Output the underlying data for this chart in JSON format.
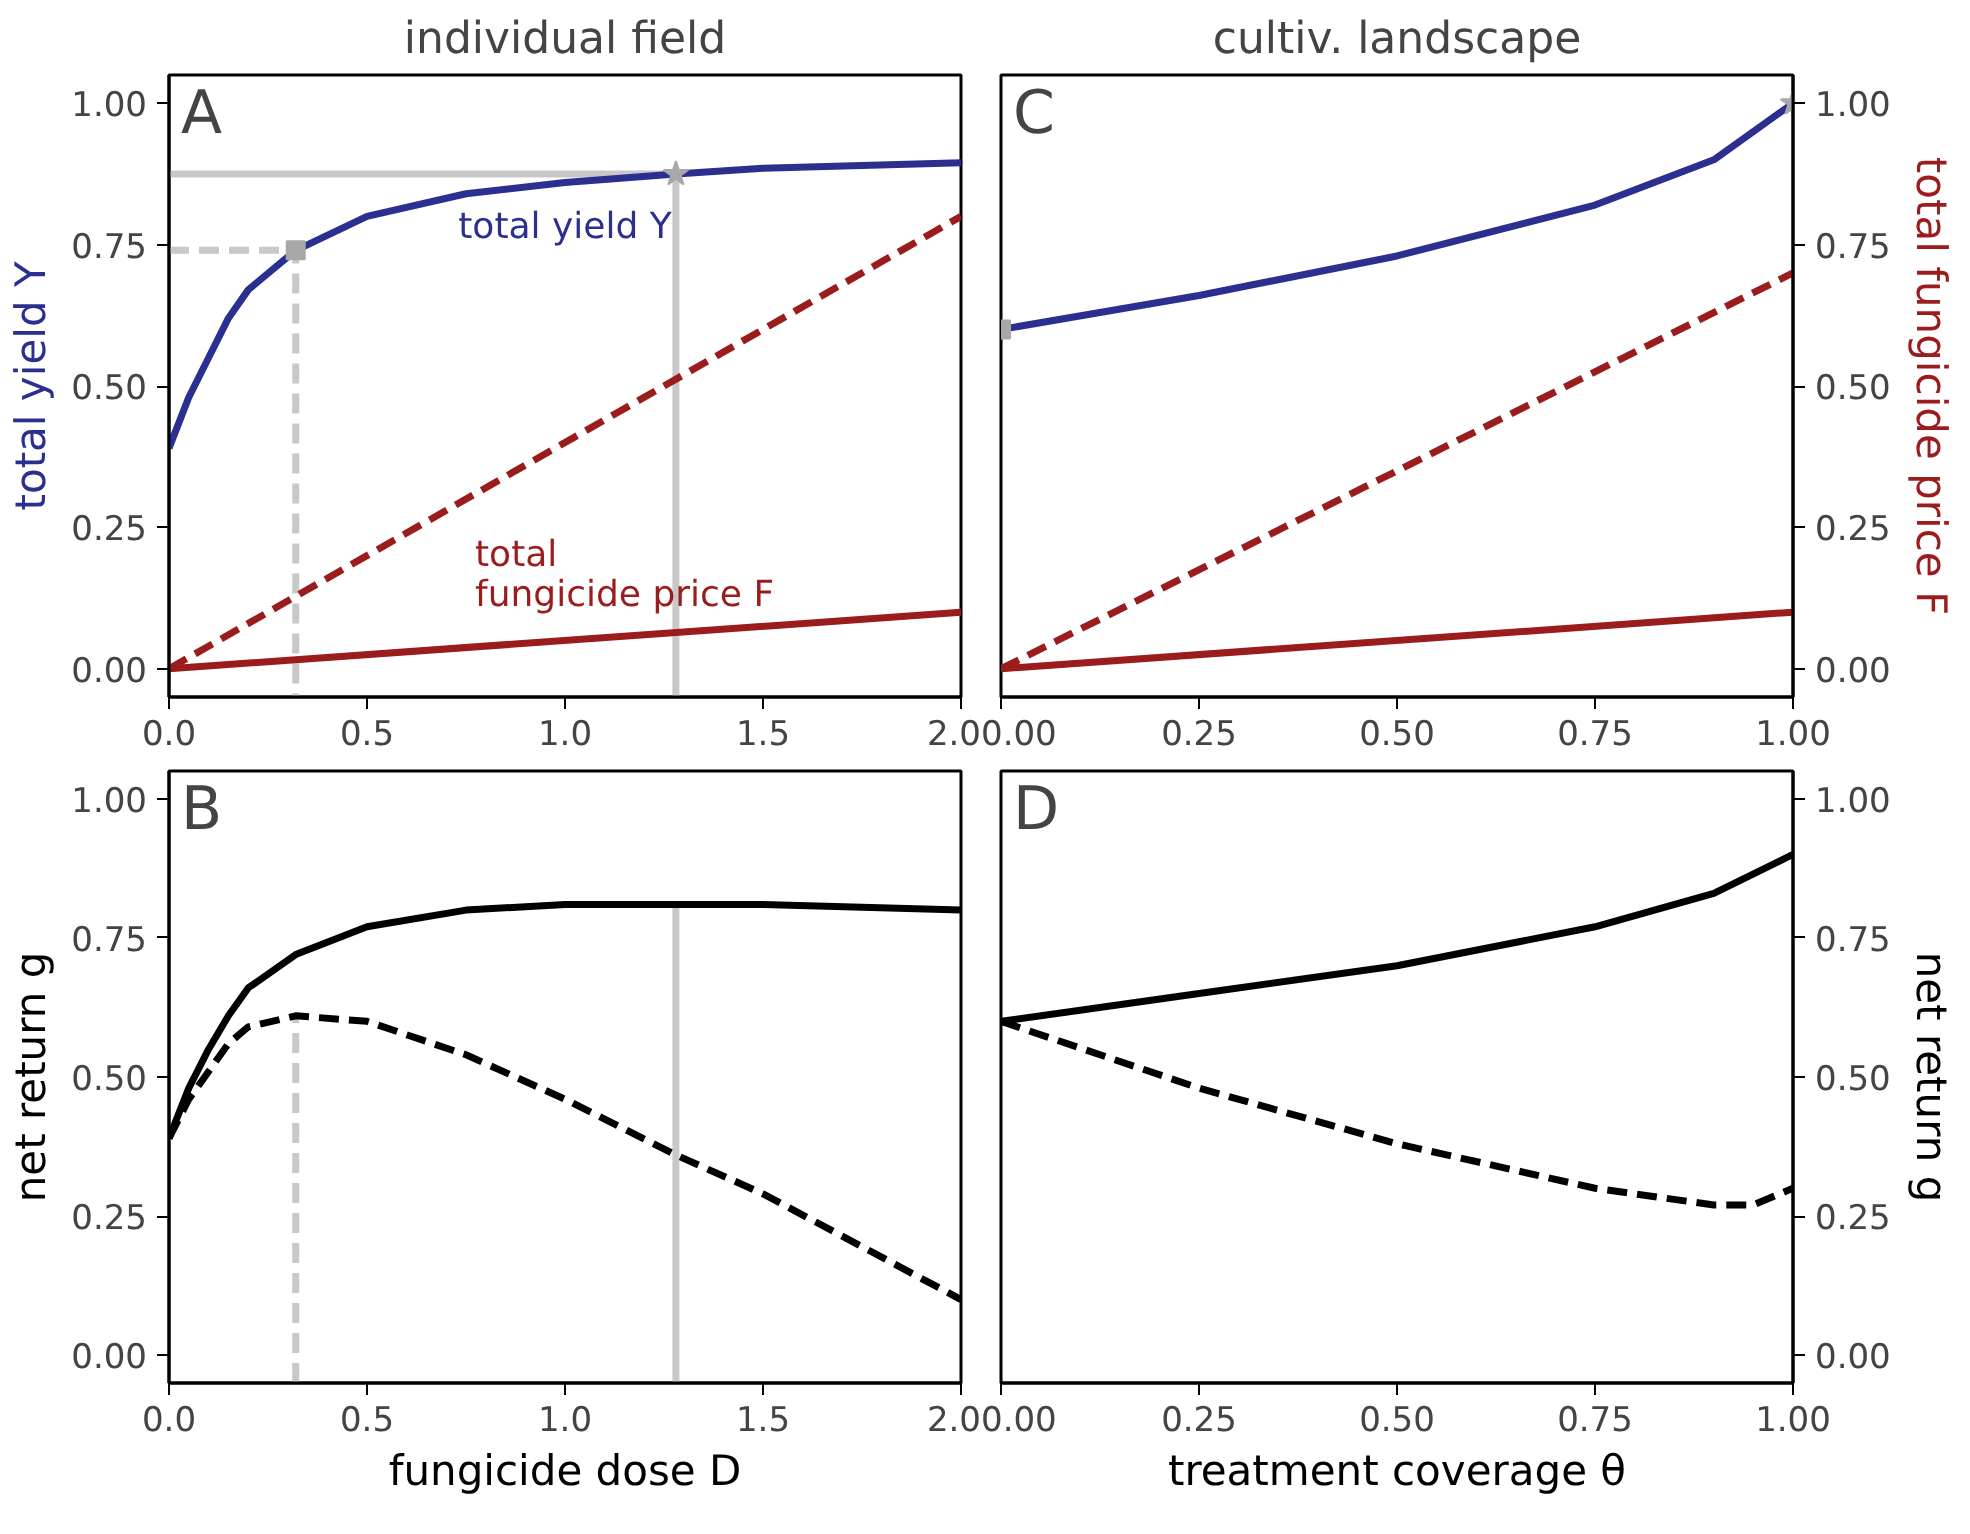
{
  "chart_data": [
    {
      "type": "line",
      "title": "individual field",
      "ylabel": "total yield Y",
      "annotations": [
        "A"
      ],
      "xlim": [
        0,
        2
      ],
      "ylim": [
        -0.05,
        1.05
      ],
      "xticks": [
        {
          "value": 0,
          "label": "0.0"
        },
        {
          "value": 0.5,
          "label": "0.5"
        },
        {
          "value": 1,
          "label": "1.0"
        },
        {
          "value": 1.5,
          "label": "1.5"
        },
        {
          "value": 2,
          "label": "2.0"
        }
      ],
      "yticks": [
        {
          "value": 0,
          "label": "0.00"
        },
        {
          "value": 0.25,
          "label": "0.25"
        },
        {
          "value": 0.5,
          "label": "0.50"
        },
        {
          "value": 0.75,
          "label": "0.75"
        },
        {
          "value": 1,
          "label": "1.00"
        }
      ],
      "series": [
        {
          "color": "#c8c8c8",
          "line_style": "dashed",
          "x": [
            0,
            0.32,
            0.32
          ],
          "values": [
            0.74,
            0.74,
            -0.05
          ]
        },
        {
          "color": "#c8c8c8",
          "line_style": "solid",
          "x": [
            0,
            1.28,
            1.28
          ],
          "values": [
            0.875,
            0.875,
            -0.05
          ]
        },
        {
          "name": "total yield Y",
          "color": "#2b2f8f",
          "line_style": "solid",
          "x": [
            0,
            0.05,
            0.1,
            0.15,
            0.2,
            0.32,
            0.5,
            0.75,
            1.0,
            1.28,
            1.5,
            2.0
          ],
          "values": [
            0.39,
            0.48,
            0.55,
            0.62,
            0.67,
            0.74,
            0.8,
            0.84,
            0.86,
            0.875,
            0.885,
            0.895
          ]
        },
        {
          "color": "#9b1c1c",
          "line_style": "dashed",
          "x": [
            0,
            2
          ],
          "values": [
            0,
            0.8
          ]
        },
        {
          "name": "total\nfungicide price F",
          "color": "#9b1c1c",
          "line_style": "solid",
          "x": [
            0,
            2
          ],
          "values": [
            0,
            0.1
          ]
        },
        {
          "type": "scatter",
          "marker": "square",
          "color": "#a8a8a8",
          "x": [
            0.32
          ],
          "values": [
            0.74
          ]
        },
        {
          "type": "scatter",
          "marker": "star",
          "color": "#a8a8a8",
          "x": [
            1.28
          ],
          "values": [
            0.875
          ]
        }
      ]
    },
    {
      "type": "line",
      "title": "cultiv. landscape",
      "y2label": "total fungicide price F",
      "annotations": [
        "C"
      ],
      "xlim": [
        0,
        1
      ],
      "y2lim": [
        -0.05,
        1.05
      ],
      "xticks": [
        {
          "value": 0,
          "label": "0.00"
        },
        {
          "value": 0.25,
          "label": "0.25"
        },
        {
          "value": 0.5,
          "label": "0.50"
        },
        {
          "value": 0.75,
          "label": "0.75"
        },
        {
          "value": 1,
          "label": "1.00"
        }
      ],
      "y2ticks": [
        {
          "value": 0,
          "label": "0.00"
        },
        {
          "value": 0.25,
          "label": "0.25"
        },
        {
          "value": 0.5,
          "label": "0.50"
        },
        {
          "value": 0.75,
          "label": "0.75"
        },
        {
          "value": 1,
          "label": "1.00"
        }
      ],
      "series": [
        {
          "axis": "y2",
          "color": "#2b2f8f",
          "line_style": "solid",
          "x": [
            0,
            0.25,
            0.5,
            0.75,
            0.9,
            1.0
          ],
          "values": [
            0.6,
            0.66,
            0.73,
            0.82,
            0.9,
            1.0
          ]
        },
        {
          "axis": "y2",
          "color": "#9b1c1c",
          "line_style": "dashed",
          "x": [
            0,
            1
          ],
          "values": [
            0,
            0.7
          ]
        },
        {
          "axis": "y2",
          "color": "#9b1c1c",
          "line_style": "solid",
          "x": [
            0,
            1
          ],
          "values": [
            0,
            0.1
          ]
        },
        {
          "type": "scatter",
          "axis": "y2",
          "marker": "square",
          "color": "#a8a8a8",
          "x": [
            0
          ],
          "values": [
            0.6
          ]
        },
        {
          "type": "scatter",
          "axis": "y2",
          "marker": "star",
          "color": "#a8a8a8",
          "x": [
            1
          ],
          "values": [
            1.0
          ]
        }
      ]
    },
    {
      "type": "line",
      "xlabel": "fungicide dose D",
      "ylabel": "net return g",
      "annotations": [
        "B"
      ],
      "xlim": [
        0,
        2
      ],
      "ylim": [
        -0.05,
        1.05
      ],
      "xticks": [
        {
          "value": 0,
          "label": "0.0"
        },
        {
          "value": 0.5,
          "label": "0.5"
        },
        {
          "value": 1,
          "label": "1.0"
        },
        {
          "value": 1.5,
          "label": "1.5"
        },
        {
          "value": 2,
          "label": "2.0"
        }
      ],
      "yticks": [
        {
          "value": 0,
          "label": "0.00"
        },
        {
          "value": 0.25,
          "label": "0.25"
        },
        {
          "value": 0.5,
          "label": "0.50"
        },
        {
          "value": 0.75,
          "label": "0.75"
        },
        {
          "value": 1,
          "label": "1.00"
        }
      ],
      "series": [
        {
          "color": "#c8c8c8",
          "line_style": "dashed",
          "x": [
            0.32,
            0.32
          ],
          "values": [
            -0.05,
            0.61
          ]
        },
        {
          "color": "#c8c8c8",
          "line_style": "solid",
          "x": [
            1.28,
            1.28
          ],
          "values": [
            -0.05,
            0.81
          ]
        },
        {
          "color": "#000000",
          "line_style": "solid",
          "x": [
            0,
            0.05,
            0.1,
            0.15,
            0.2,
            0.32,
            0.5,
            0.75,
            1.0,
            1.28,
            1.5,
            2.0
          ],
          "values": [
            0.39,
            0.48,
            0.55,
            0.61,
            0.66,
            0.72,
            0.77,
            0.8,
            0.81,
            0.81,
            0.81,
            0.8
          ]
        },
        {
          "color": "#000000",
          "line_style": "dashed",
          "x": [
            0,
            0.05,
            0.1,
            0.15,
            0.2,
            0.32,
            0.5,
            0.75,
            1.0,
            1.28,
            1.5,
            2.0
          ],
          "values": [
            0.39,
            0.46,
            0.51,
            0.56,
            0.59,
            0.61,
            0.6,
            0.54,
            0.46,
            0.36,
            0.29,
            0.1
          ]
        }
      ]
    },
    {
      "type": "line",
      "xlabel": "treatment coverage θ",
      "y2label": "net return g",
      "annotations": [
        "D"
      ],
      "xlim": [
        0,
        1
      ],
      "y2lim": [
        -0.05,
        1.05
      ],
      "xticks": [
        {
          "value": 0,
          "label": "0.00"
        },
        {
          "value": 0.25,
          "label": "0.25"
        },
        {
          "value": 0.5,
          "label": "0.50"
        },
        {
          "value": 0.75,
          "label": "0.75"
        },
        {
          "value": 1,
          "label": "1.00"
        }
      ],
      "y2ticks": [
        {
          "value": 0,
          "label": "0.00"
        },
        {
          "value": 0.25,
          "label": "0.25"
        },
        {
          "value": 0.5,
          "label": "0.50"
        },
        {
          "value": 0.75,
          "label": "0.75"
        },
        {
          "value": 1,
          "label": "1.00"
        }
      ],
      "series": [
        {
          "axis": "y2",
          "color": "#000000",
          "line_style": "solid",
          "x": [
            0,
            0.25,
            0.5,
            0.75,
            0.9,
            1.0
          ],
          "values": [
            0.6,
            0.65,
            0.7,
            0.77,
            0.83,
            0.9
          ]
        },
        {
          "axis": "y2",
          "color": "#000000",
          "line_style": "dashed",
          "x": [
            0,
            0.25,
            0.5,
            0.75,
            0.9,
            0.95,
            1.0
          ],
          "values": [
            0.6,
            0.48,
            0.38,
            0.3,
            0.27,
            0.27,
            0.3
          ]
        }
      ]
    }
  ]
}
